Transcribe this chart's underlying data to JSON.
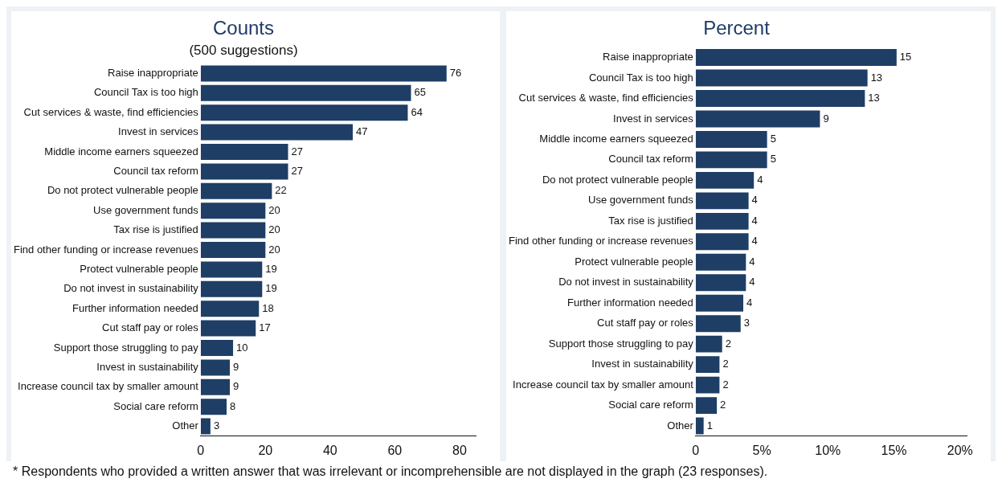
{
  "chart_data": [
    {
      "type": "bar",
      "orientation": "horizontal",
      "title": "Counts",
      "subtitle": "(500 suggestions)",
      "categories": [
        "Raise inappropriate",
        "Council Tax is too high",
        "Cut services & waste, find efficiencies",
        "Invest in services",
        "Middle income earners squeezed",
        "Council tax reform",
        "Do not protect vulnerable people",
        "Use government funds",
        "Tax rise is justified",
        "Find other funding or increase revenues",
        "Protect vulnerable people",
        "Do not invest in sustainability",
        "Further information needed",
        "Cut staff pay or roles",
        "Support those struggling to pay",
        "Invest in sustainability",
        "Increase council tax by smaller amount",
        "Social care reform",
        "Other"
      ],
      "values": [
        76,
        65,
        64,
        47,
        27,
        27,
        22,
        20,
        20,
        20,
        19,
        19,
        18,
        17,
        10,
        9,
        9,
        8,
        3
      ],
      "color": "#1f3e66",
      "xlim": [
        0,
        85
      ],
      "xticks": [
        0,
        20,
        40,
        60,
        80
      ],
      "data_labels": true,
      "annotations": [
        "* Respondents who provided a written answer that was irrelevant or incomprehensible are not displayed in the graph (23 responses)."
      ]
    },
    {
      "type": "bar",
      "orientation": "horizontal",
      "title": "Percent",
      "categories": [
        "Raise inappropriate",
        "Council Tax is too high",
        "Cut services & waste, find efficiencies",
        "Invest in services",
        "Middle income earners squeezed",
        "Council tax reform",
        "Do not protect vulnerable people",
        "Use government funds",
        "Tax rise is justified",
        "Find other funding or increase revenues",
        "Protect vulnerable people",
        "Do not invest in sustainability",
        "Further information needed",
        "Cut staff pay or roles",
        "Support those struggling to pay",
        "Invest in sustainability",
        "Increase council tax by smaller amount",
        "Social care reform",
        "Other"
      ],
      "values": [
        15.2,
        13,
        12.8,
        9.4,
        5.4,
        5.4,
        4.4,
        4,
        4,
        4,
        3.8,
        3.8,
        3.6,
        3.4,
        2,
        1.8,
        1.8,
        1.6,
        0.6
      ],
      "value_labels": [
        "15",
        "13",
        "13",
        "9",
        "5",
        "5",
        "4",
        "4",
        "4",
        "4",
        "4",
        "4",
        "4",
        "3",
        "2",
        "2",
        "2",
        "2",
        "1"
      ],
      "color": "#1f3e66",
      "xlim": [
        0,
        20.5
      ],
      "xticks": [
        0,
        {
          "value": 5,
          "label": "5%"
        },
        {
          "value": 10,
          "label": "10%"
        },
        {
          "value": 15,
          "label": "15%"
        },
        {
          "value": 20,
          "label": "20%"
        }
      ]
    }
  ]
}
